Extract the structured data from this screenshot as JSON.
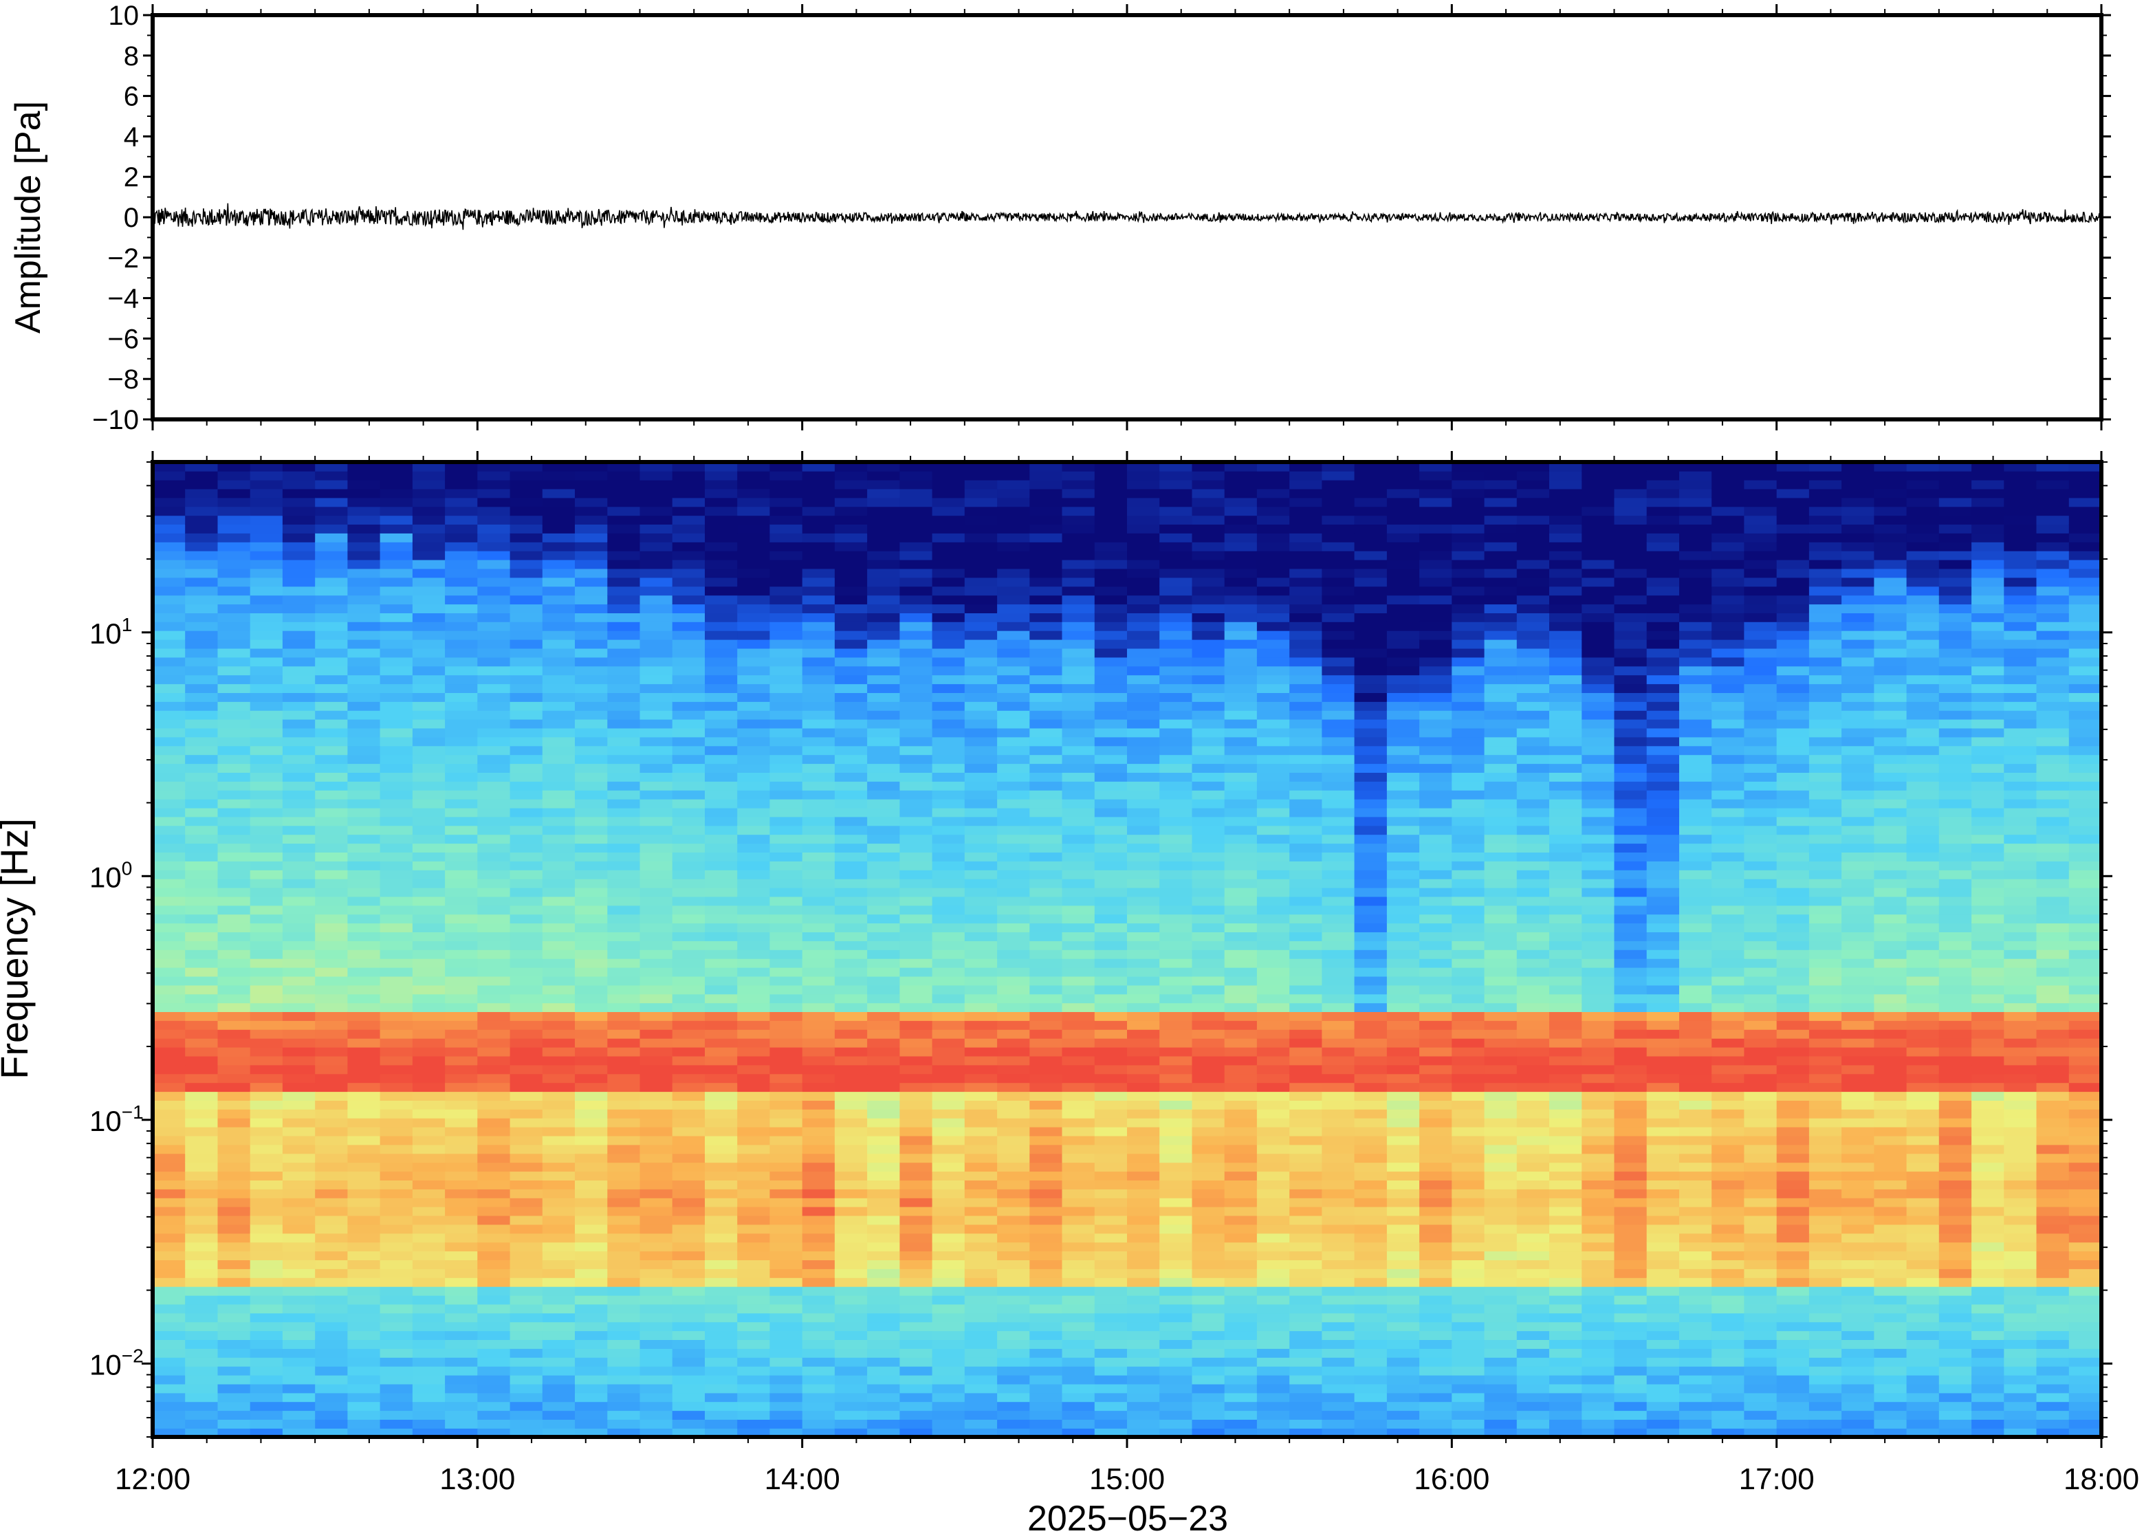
{
  "chart_data": [
    {
      "type": "line",
      "ylabel": "Amplitude [Pa]",
      "ylim": [
        -10,
        10
      ],
      "yticks": [
        "10",
        "8",
        "6",
        "4",
        "2",
        "0",
        "−2",
        "−4",
        "−6",
        "−8",
        "−10"
      ],
      "ytick_values": [
        10,
        8,
        6,
        4,
        2,
        0,
        -2,
        -4,
        -6,
        -8,
        -10
      ],
      "xlim": [
        "12:00",
        "18:00"
      ],
      "grid": false,
      "series": [
        {
          "color": "#000000",
          "x_hours": [
            12.0,
            12.5,
            13.0,
            13.5,
            14.0,
            14.5,
            15.0,
            15.5,
            16.0,
            16.5,
            17.0,
            17.5,
            18.0
          ],
          "envelope_pa": [
            0.5,
            0.4,
            0.4,
            0.35,
            0.25,
            0.2,
            0.2,
            0.18,
            0.18,
            0.18,
            0.22,
            0.25,
            0.25
          ],
          "mean_pa": 0
        }
      ]
    },
    {
      "type": "heatmap",
      "ylabel": "Frequency [Hz]",
      "yscale": "log",
      "ylim": [
        0.005,
        50
      ],
      "yticks": [
        {
          "base": "10",
          "exp": "1",
          "value": 10
        },
        {
          "base": "10",
          "exp": "0",
          "value": 1
        },
        {
          "base": "10",
          "exp": "−1",
          "value": 0.1
        },
        {
          "base": "10",
          "exp": "−2",
          "value": 0.01
        }
      ],
      "xlim": [
        "12:00",
        "18:00"
      ],
      "colormap": "jet (dark blue = low power, red = high power)",
      "colors": [
        "#0a0a78",
        "#1f6fff",
        "#50d2f5",
        "#8ff0c0",
        "#eef07a",
        "#fbb050",
        "#f04a3c"
      ],
      "microseism_peak_hz": 0.16,
      "grid": false
    }
  ],
  "xaxis": {
    "ticks": [
      "12:00",
      "13:00",
      "14:00",
      "15:00",
      "16:00",
      "17:00",
      "18:00"
    ],
    "tick_values_hours": [
      12,
      13,
      14,
      15,
      16,
      17,
      18
    ],
    "date_label": "2025−05−23"
  }
}
